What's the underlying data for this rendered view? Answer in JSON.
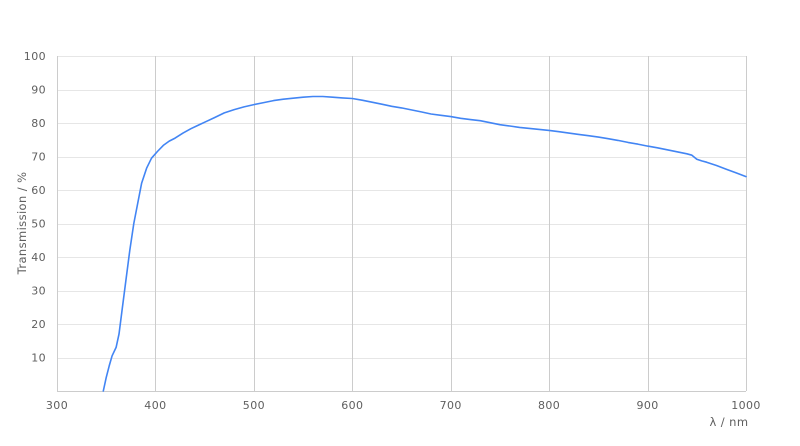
{
  "chart_data": {
    "type": "line",
    "title": "",
    "xlabel": "λ / nm",
    "ylabel": "Transmission / %",
    "xlim": [
      300,
      1000
    ],
    "ylim": [
      0,
      100
    ],
    "x_ticks": [
      300,
      400,
      500,
      600,
      700,
      800,
      900,
      1000
    ],
    "y_ticks": [
      10,
      20,
      30,
      40,
      50,
      60,
      70,
      80,
      90,
      100
    ],
    "grid": true,
    "legend_position": "none",
    "colors": {
      "line": "#4285f4",
      "vertical_grid": "#cccccc",
      "horizontal_grid": "#e6e6e6",
      "axis_line": "#cccccc",
      "tick_label": "#5f5f5f",
      "axis_title": "#5f5f5f",
      "background": "#ffffff"
    },
    "series": [
      {
        "name": "Transmission",
        "points": [
          [
            347,
            0
          ],
          [
            350,
            4
          ],
          [
            353,
            7.5
          ],
          [
            356,
            10.5
          ],
          [
            360,
            13
          ],
          [
            363,
            17
          ],
          [
            366,
            24
          ],
          [
            370,
            33
          ],
          [
            374,
            42
          ],
          [
            378,
            50
          ],
          [
            382,
            56
          ],
          [
            386,
            62
          ],
          [
            391,
            66.5
          ],
          [
            396,
            69.5
          ],
          [
            402,
            71.5
          ],
          [
            408,
            73.3
          ],
          [
            414,
            74.6
          ],
          [
            420,
            75.5
          ],
          [
            428,
            77
          ],
          [
            436,
            78.3
          ],
          [
            444,
            79.4
          ],
          [
            452,
            80.5
          ],
          [
            460,
            81.6
          ],
          [
            470,
            83
          ],
          [
            480,
            84
          ],
          [
            490,
            84.8
          ],
          [
            500,
            85.5
          ],
          [
            510,
            86.1
          ],
          [
            520,
            86.7
          ],
          [
            530,
            87.1
          ],
          [
            540,
            87.4
          ],
          [
            550,
            87.7
          ],
          [
            560,
            87.9
          ],
          [
            570,
            87.9
          ],
          [
            580,
            87.7
          ],
          [
            590,
            87.5
          ],
          [
            600,
            87.3
          ],
          [
            610,
            86.8
          ],
          [
            620,
            86.2
          ],
          [
            630,
            85.6
          ],
          [
            640,
            85
          ],
          [
            650,
            84.5
          ],
          [
            660,
            83.9
          ],
          [
            670,
            83.3
          ],
          [
            680,
            82.7
          ],
          [
            690,
            82.3
          ],
          [
            700,
            81.9
          ],
          [
            710,
            81.4
          ],
          [
            720,
            81
          ],
          [
            730,
            80.7
          ],
          [
            740,
            80.1
          ],
          [
            750,
            79.5
          ],
          [
            760,
            79.1
          ],
          [
            770,
            78.7
          ],
          [
            780,
            78.4
          ],
          [
            790,
            78.1
          ],
          [
            800,
            77.8
          ],
          [
            810,
            77.4
          ],
          [
            820,
            77
          ],
          [
            830,
            76.6
          ],
          [
            840,
            76.2
          ],
          [
            850,
            75.8
          ],
          [
            860,
            75.3
          ],
          [
            870,
            74.8
          ],
          [
            880,
            74.2
          ],
          [
            890,
            73.7
          ],
          [
            900,
            73.1
          ],
          [
            910,
            72.6
          ],
          [
            920,
            72
          ],
          [
            930,
            71.4
          ],
          [
            940,
            70.8
          ],
          [
            945,
            70.4
          ],
          [
            950,
            69.2
          ],
          [
            955,
            68.7
          ],
          [
            960,
            68.3
          ],
          [
            970,
            67.3
          ],
          [
            980,
            66.2
          ],
          [
            990,
            65.1
          ],
          [
            1000,
            64
          ]
        ]
      }
    ]
  }
}
